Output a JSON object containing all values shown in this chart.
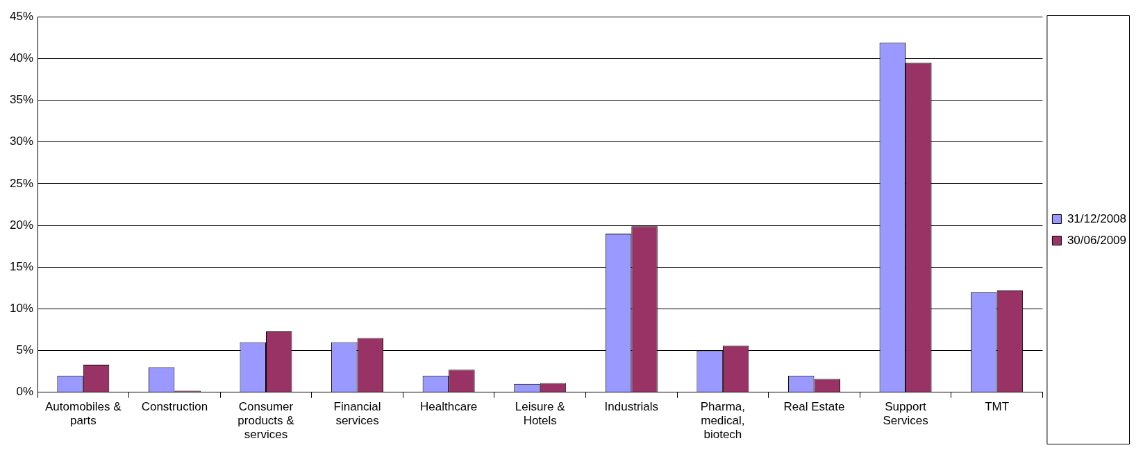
{
  "chart_data": {
    "type": "bar",
    "categories": [
      "Automobiles & parts",
      "Construction",
      "Consumer products & services",
      "Financial services",
      "Healthcare",
      "Leisure & Hotels",
      "Industrials",
      "Pharma, medical, biotech",
      "Real Estate",
      "Support Services",
      "TMT"
    ],
    "series": [
      {
        "name": "31/12/2008",
        "color": "#9999ff",
        "values": [
          2,
          3,
          6,
          6,
          2,
          1,
          19,
          5,
          2,
          41.9,
          12
        ]
      },
      {
        "name": "30/06/2009",
        "color": "#993366",
        "values": [
          3.3,
          0.2,
          7.3,
          6.5,
          2.7,
          1.1,
          19.9,
          5.6,
          1.6,
          39.5,
          12.2
        ]
      }
    ],
    "ylim": [
      0,
      45
    ],
    "yticks": [
      {
        "value": 0,
        "label": "0%"
      },
      {
        "value": 5,
        "label": "5%"
      },
      {
        "value": 10,
        "label": "10%"
      },
      {
        "value": 15,
        "label": "15%"
      },
      {
        "value": 20,
        "label": "20%"
      },
      {
        "value": 25,
        "label": "25%"
      },
      {
        "value": 30,
        "label": "30%"
      },
      {
        "value": 35,
        "label": "35%"
      },
      {
        "value": 40,
        "label": "40%"
      },
      {
        "value": 45,
        "label": "45%"
      }
    ],
    "grid": "y",
    "legend": "right"
  }
}
